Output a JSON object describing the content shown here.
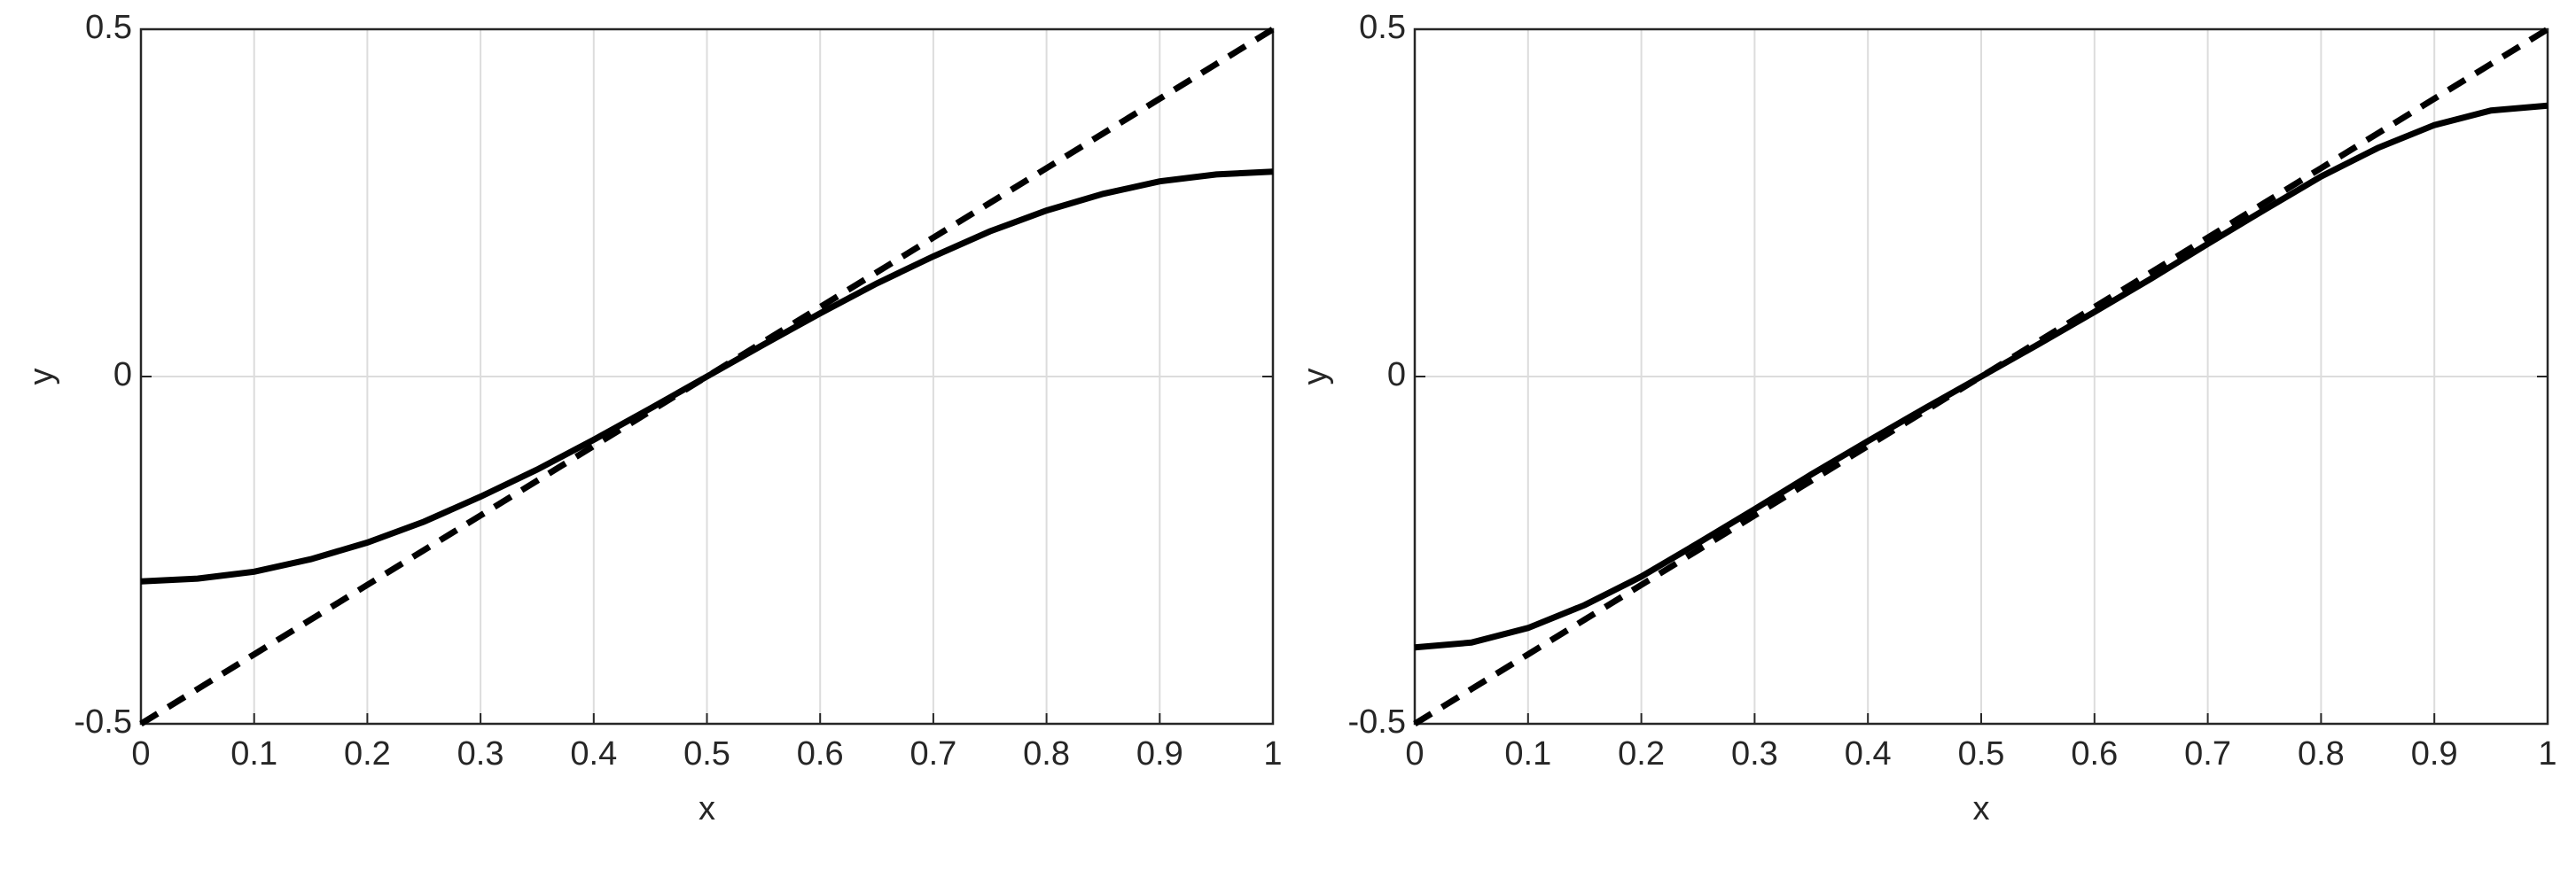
{
  "chart_data": [
    {
      "type": "line",
      "xlabel": "x",
      "ylabel": "y",
      "x": [
        0,
        0.05,
        0.1,
        0.15,
        0.2,
        0.25,
        0.3,
        0.35,
        0.4,
        0.45,
        0.5,
        0.55,
        0.6,
        0.65,
        0.7,
        0.75,
        0.8,
        0.85,
        0.9,
        0.95,
        1
      ],
      "series": [
        {
          "color": "#000000",
          "style": "solid",
          "values": [
            -0.295,
            -0.291,
            -0.281,
            -0.263,
            -0.239,
            -0.209,
            -0.173,
            -0.134,
            -0.091,
            -0.046,
            0,
            0.046,
            0.091,
            0.134,
            0.173,
            0.209,
            0.239,
            0.263,
            0.281,
            0.291,
            0.295
          ]
        },
        {
          "color": "#000000",
          "style": "dashed",
          "values": [
            -0.5,
            -0.45,
            -0.4,
            -0.35,
            -0.3,
            -0.25,
            -0.2,
            -0.15,
            -0.1,
            -0.05,
            0,
            0.05,
            0.1,
            0.15,
            0.2,
            0.25,
            0.3,
            0.35,
            0.4,
            0.45,
            0.5
          ]
        }
      ],
      "xlim": [
        0,
        1
      ],
      "xticks": [
        0,
        0.1,
        0.2,
        0.3,
        0.4,
        0.5,
        0.6,
        0.7,
        0.8,
        0.9,
        1
      ],
      "ylim": [
        -0.5,
        0.5
      ],
      "yticks": [
        -0.5,
        0,
        0.5
      ],
      "grid": true
    },
    {
      "type": "line",
      "xlabel": "x",
      "ylabel": "y",
      "x": [
        0,
        0.05,
        0.1,
        0.15,
        0.2,
        0.25,
        0.3,
        0.35,
        0.4,
        0.45,
        0.5,
        0.55,
        0.6,
        0.65,
        0.7,
        0.75,
        0.8,
        0.85,
        0.9,
        0.95,
        1
      ],
      "series": [
        {
          "color": "#000000",
          "style": "solid",
          "values": [
            -0.39,
            -0.383,
            -0.362,
            -0.329,
            -0.288,
            -0.24,
            -0.191,
            -0.141,
            -0.093,
            -0.046,
            0,
            0.046,
            0.093,
            0.141,
            0.191,
            0.24,
            0.288,
            0.329,
            0.362,
            0.383,
            0.39
          ]
        },
        {
          "color": "#000000",
          "style": "dashed",
          "values": [
            -0.5,
            -0.45,
            -0.4,
            -0.35,
            -0.3,
            -0.25,
            -0.2,
            -0.15,
            -0.1,
            -0.05,
            0,
            0.05,
            0.1,
            0.15,
            0.2,
            0.25,
            0.3,
            0.35,
            0.4,
            0.45,
            0.5
          ]
        }
      ],
      "xlim": [
        0,
        1
      ],
      "xticks": [
        0,
        0.1,
        0.2,
        0.3,
        0.4,
        0.5,
        0.6,
        0.7,
        0.8,
        0.9,
        1
      ],
      "ylim": [
        -0.5,
        0.5
      ],
      "yticks": [
        -0.5,
        0,
        0.5
      ],
      "grid": true
    }
  ]
}
